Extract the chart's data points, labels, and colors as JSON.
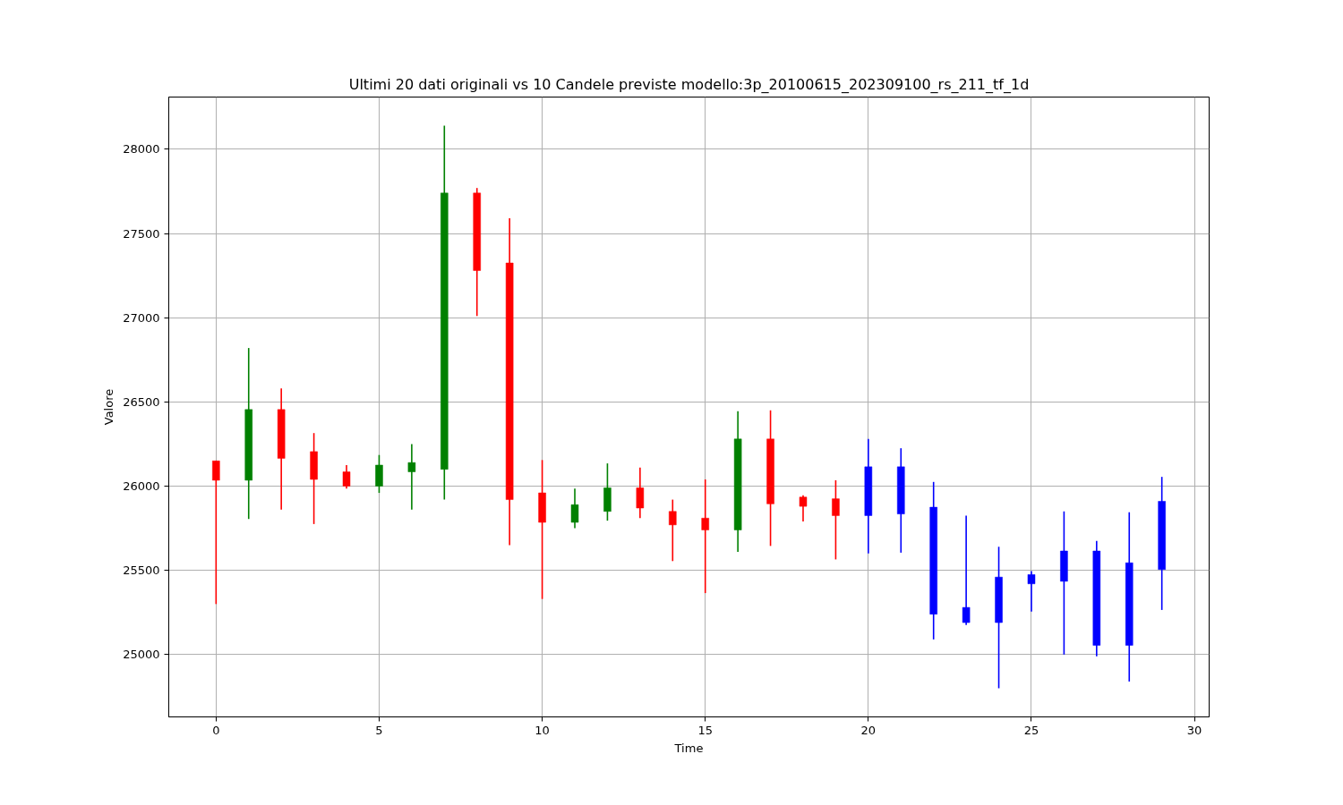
{
  "chart_data": {
    "type": "candlestick",
    "title": "Ultimi 20 dati originali vs 10 Candele previste modello:3p_20100615_202309100_rs_211_tf_1d",
    "xlabel": "Time",
    "ylabel": "Valore",
    "x": [
      0,
      1,
      2,
      3,
      4,
      5,
      6,
      7,
      8,
      9,
      10,
      11,
      12,
      13,
      14,
      15,
      16,
      17,
      18,
      19,
      20,
      21,
      22,
      23,
      24,
      25,
      26,
      27,
      28,
      29
    ],
    "ohlc": [
      [
        26150,
        26150,
        25300,
        26035
      ],
      [
        26035,
        26820,
        25805,
        26455
      ],
      [
        26455,
        26580,
        25860,
        26165
      ],
      [
        26205,
        26315,
        25775,
        26040
      ],
      [
        26085,
        26125,
        25985,
        26000
      ],
      [
        26000,
        26185,
        25960,
        26125
      ],
      [
        26085,
        26250,
        25860,
        26140
      ],
      [
        26100,
        28140,
        25920,
        27740
      ],
      [
        27740,
        27770,
        27010,
        27280
      ],
      [
        27325,
        27590,
        25650,
        25920
      ],
      [
        25960,
        26155,
        25330,
        25785
      ],
      [
        25785,
        25985,
        25750,
        25890
      ],
      [
        25850,
        26135,
        25795,
        25990
      ],
      [
        25990,
        26110,
        25810,
        25870
      ],
      [
        25850,
        25920,
        25555,
        25770
      ],
      [
        25810,
        26040,
        25365,
        25740
      ],
      [
        25740,
        26445,
        25610,
        26280
      ],
      [
        26280,
        26450,
        25645,
        25895
      ],
      [
        25935,
        25945,
        25790,
        25880
      ],
      [
        25925,
        26035,
        25565,
        25825
      ],
      [
        25825,
        26280,
        25600,
        26115
      ],
      [
        26115,
        26225,
        25605,
        25835
      ],
      [
        25875,
        26025,
        25090,
        25240
      ],
      [
        25280,
        25825,
        25175,
        25190
      ],
      [
        25190,
        25640,
        24800,
        25460
      ],
      [
        25475,
        25495,
        25255,
        25420
      ],
      [
        25435,
        25850,
        25000,
        25615
      ],
      [
        25615,
        25675,
        24990,
        25055
      ],
      [
        25055,
        25845,
        24840,
        25545
      ],
      [
        25505,
        26055,
        25265,
        25910
      ]
    ],
    "colors": [
      "#ff0000",
      "#008000",
      "#ff0000",
      "#ff0000",
      "#ff0000",
      "#008000",
      "#008000",
      "#008000",
      "#ff0000",
      "#ff0000",
      "#ff0000",
      "#008000",
      "#008000",
      "#ff0000",
      "#ff0000",
      "#ff0000",
      "#008000",
      "#ff0000",
      "#ff0000",
      "#ff0000",
      "#0000ff",
      "#0000ff",
      "#0000ff",
      "#0000ff",
      "#0000ff",
      "#0000ff",
      "#0000ff",
      "#0000ff",
      "#0000ff",
      "#0000ff"
    ],
    "xlim": [
      -1.45,
      30.45
    ],
    "ylim": [
      24630,
      28310
    ],
    "xticks": [
      0,
      5,
      10,
      15,
      20,
      25,
      30
    ],
    "yticks": [
      25000,
      25500,
      26000,
      26500,
      27000,
      27500,
      28000
    ],
    "grid": true
  }
}
